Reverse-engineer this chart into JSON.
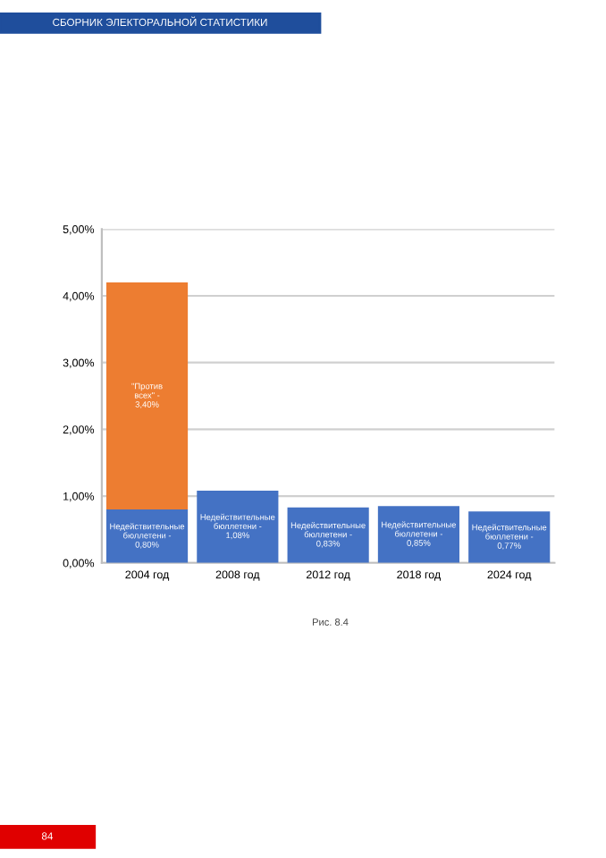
{
  "chart_data": {
    "type": "bar",
    "stacked": true,
    "categories": [
      "2004 год",
      "2008 год",
      "2012 год",
      "2018 год",
      "2024 год"
    ],
    "series": [
      {
        "color": "#4472c4",
        "values": [
          0.8,
          1.08,
          0.83,
          0.85,
          0.77
        ]
      },
      {
        "color": "#ed7d31",
        "values": [
          3.4,
          null,
          null,
          null,
          null
        ]
      }
    ],
    "ylim": [
      0,
      5
    ],
    "yticks": [
      {
        "value": 0,
        "label": "0,00%"
      },
      {
        "value": 1,
        "label": "1,00%"
      },
      {
        "value": 2,
        "label": "2,00%"
      },
      {
        "value": 3,
        "label": "3,00%"
      },
      {
        "value": 4,
        "label": "4,00%"
      },
      {
        "value": 5,
        "label": "5,00%"
      }
    ],
    "grid": "y",
    "annotations": [
      "СБОРНИК ЭЛЕКТОРАЛЬНОЙ СТАТИСТИКИ",
      "Рис. 8.4",
      "84",
      {
        "text": "Недействительные\nбюллетени -\n0,80%",
        "x": "2004 год",
        "y": 0.8
      },
      {
        "text": "Недействительные\nбюллетени -\n1,08%",
        "x": "2008 год",
        "y": 1.08
      },
      {
        "text": "Недействительные\nбюллетени -\n0,83%",
        "x": "2012 год",
        "y": 0.83
      },
      {
        "text": "Недействительные\nбюллетени -\n0,85%",
        "x": "2018 год",
        "y": 0.85
      },
      {
        "text": "Недействительные\nбюллетени -\n0,77%",
        "x": "2024 год",
        "y": 0.77
      },
      "\"Против\nвсех\" -\n3,40%"
    ]
  }
}
